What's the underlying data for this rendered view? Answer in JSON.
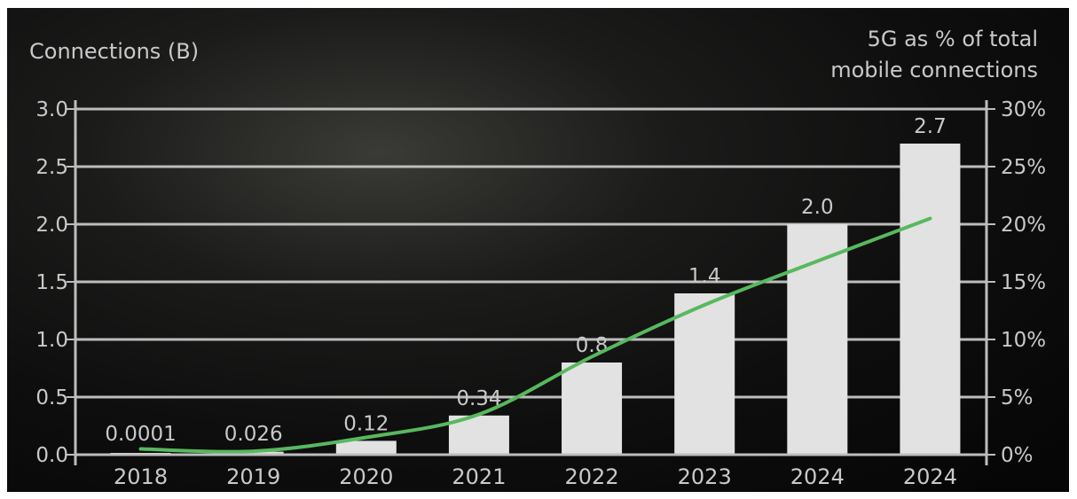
{
  "chart_data": {
    "type": "bar",
    "left_axis_title": "Connections (B)",
    "right_axis_title_lines": [
      "5G as % of total",
      "mobile connections"
    ],
    "categories": [
      "2018",
      "2019",
      "2020",
      "2021",
      "2022",
      "2023",
      "2024",
      "2024"
    ],
    "values": [
      0.0001,
      0.026,
      0.12,
      0.34,
      0.8,
      1.4,
      2.0,
      2.7
    ],
    "value_labels": [
      "0.0001",
      "0.026",
      "0.12",
      "0.34",
      "0.8",
      "1.4",
      "2.0",
      "2.7"
    ],
    "ylim": [
      0,
      3.0
    ],
    "yticks": [
      "0.0",
      "0.5",
      "1.0",
      "1.5",
      "2.0",
      "2.5",
      "3.0"
    ],
    "y2lim": [
      0,
      30
    ],
    "y2ticks": [
      "0%",
      "5%",
      "10%",
      "15%",
      "20%",
      "25%",
      "30%"
    ],
    "line_series": {
      "axis": "right",
      "values_percent": [
        0.5,
        0.3,
        1.5,
        3.5,
        8.5,
        13.0,
        16.8,
        20.5
      ]
    },
    "grid": true,
    "colors": {
      "bar": "#e2e2e2",
      "line": "#58b85e",
      "grid": "#bdbdbd",
      "text": "#c9c9c9"
    }
  }
}
